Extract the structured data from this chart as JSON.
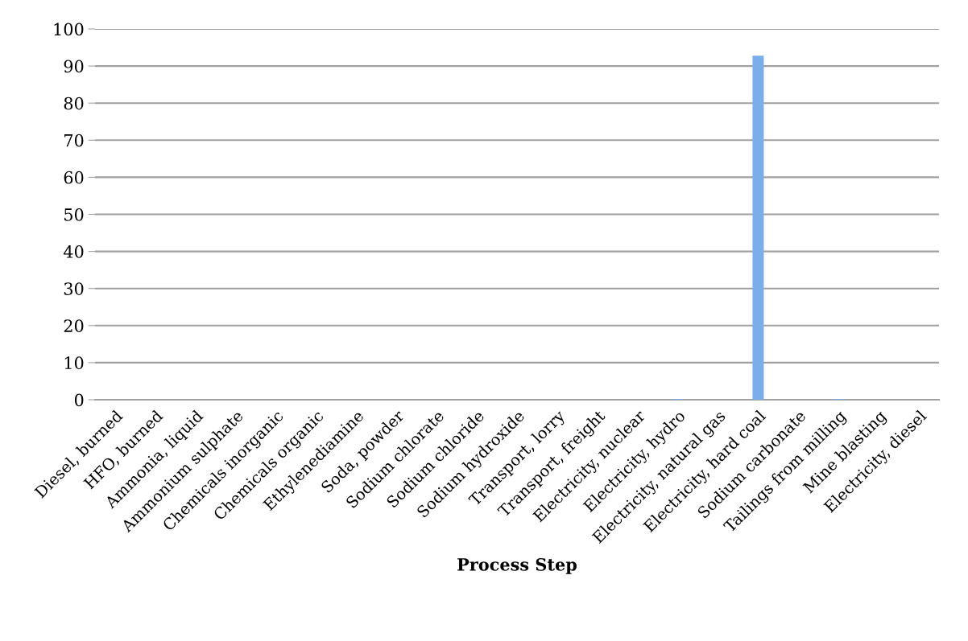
{
  "chart_data": {
    "type": "bar",
    "xlabel": "Process Step",
    "categories": [
      "Diesel, burned",
      "HFO, burned",
      "Ammonia, liquid",
      "Ammonium sulphate",
      "Chemicals inorganic",
      "Chemicals organic",
      "Ethylenediamine",
      "Soda, powder",
      "Sodium chlorate",
      "Sodium chloride",
      "Sodium hydroxide",
      "Transport, lorry",
      "Transport, freight",
      "Electricity, nuclear",
      "Electricity, hydro",
      "Electricity, natural gas",
      "Electricity, hard coal",
      "Sodium carbonate",
      "Tailings from milling",
      "Mine blasting",
      "Electricity, diesel"
    ],
    "values": [
      0,
      0,
      0,
      0,
      0,
      0,
      0,
      0,
      0,
      0,
      0,
      0,
      0,
      0,
      0.2,
      0,
      92.8,
      0,
      0.2,
      0,
      0
    ],
    "color": "#7aaeea",
    "ylim": [
      0,
      100
    ],
    "yticks": [
      0,
      10,
      20,
      30,
      40,
      50,
      60,
      70,
      80,
      90,
      100
    ],
    "grid": "y",
    "legend": false
  }
}
